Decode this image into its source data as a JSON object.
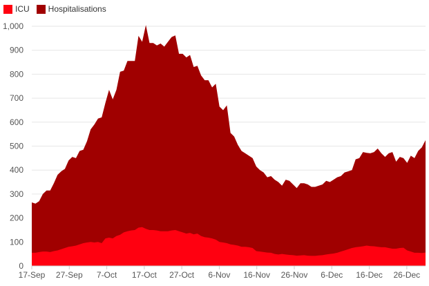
{
  "chart_data": {
    "type": "area",
    "title": "",
    "xlabel": "",
    "ylabel": "",
    "stacked": false,
    "ylim": [
      0,
      1000
    ],
    "yticks": [
      0,
      100,
      200,
      300,
      400,
      500,
      600,
      700,
      800,
      900,
      1000
    ],
    "ytick_labels": [
      "0",
      "100",
      "200",
      "300",
      "400",
      "500",
      "600",
      "700",
      "800",
      "900",
      "1,000"
    ],
    "xtick_labels": [
      "17-Sep",
      "27-Sep",
      "7-Oct",
      "17-Oct",
      "27-Oct",
      "6-Nov",
      "16-Nov",
      "26-Nov",
      "6-Dec",
      "16-Dec",
      "26-Dec"
    ],
    "x_start": "17-Sep",
    "x_end": "31-Dec",
    "grid": true,
    "legend_position": "top-left",
    "colors": {
      "ICU": "#ff0010",
      "Hospitalisations": "#a00000"
    },
    "series": [
      {
        "name": "Hospitalisations",
        "values": [
          265,
          260,
          270,
          300,
          315,
          315,
          345,
          380,
          395,
          405,
          440,
          455,
          450,
          480,
          485,
          520,
          570,
          590,
          615,
          620,
          680,
          735,
          695,
          735,
          810,
          815,
          855,
          855,
          855,
          960,
          935,
          1005,
          930,
          930,
          920,
          928,
          915,
          935,
          955,
          962,
          885,
          885,
          870,
          880,
          830,
          835,
          795,
          775,
          775,
          745,
          760,
          665,
          650,
          670,
          555,
          540,
          505,
          480,
          470,
          460,
          450,
          415,
          400,
          390,
          370,
          375,
          360,
          350,
          335,
          360,
          355,
          340,
          325,
          345,
          345,
          340,
          330,
          330,
          335,
          340,
          355,
          350,
          360,
          370,
          375,
          390,
          395,
          400,
          445,
          450,
          475,
          472,
          470,
          475,
          490,
          470,
          455,
          470,
          475,
          435,
          455,
          450,
          430,
          460,
          450,
          480,
          495,
          525
        ]
      },
      {
        "name": "ICU",
        "values": [
          55,
          55,
          58,
          60,
          60,
          58,
          62,
          65,
          70,
          75,
          80,
          82,
          85,
          90,
          95,
          98,
          100,
          98,
          100,
          95,
          115,
          118,
          115,
          125,
          130,
          140,
          145,
          148,
          150,
          160,
          162,
          155,
          150,
          150,
          148,
          145,
          145,
          145,
          148,
          150,
          145,
          140,
          135,
          138,
          132,
          135,
          125,
          120,
          118,
          115,
          110,
          100,
          98,
          95,
          90,
          88,
          85,
          80,
          80,
          78,
          75,
          62,
          60,
          58,
          56,
          55,
          50,
          48,
          50,
          48,
          46,
          45,
          43,
          44,
          45,
          43,
          42,
          42,
          44,
          45,
          48,
          50,
          52,
          55,
          60,
          65,
          70,
          75,
          78,
          80,
          82,
          85,
          83,
          82,
          80,
          78,
          78,
          75,
          72,
          72,
          75,
          76,
          65,
          60,
          55,
          55,
          54,
          56
        ]
      }
    ]
  }
}
